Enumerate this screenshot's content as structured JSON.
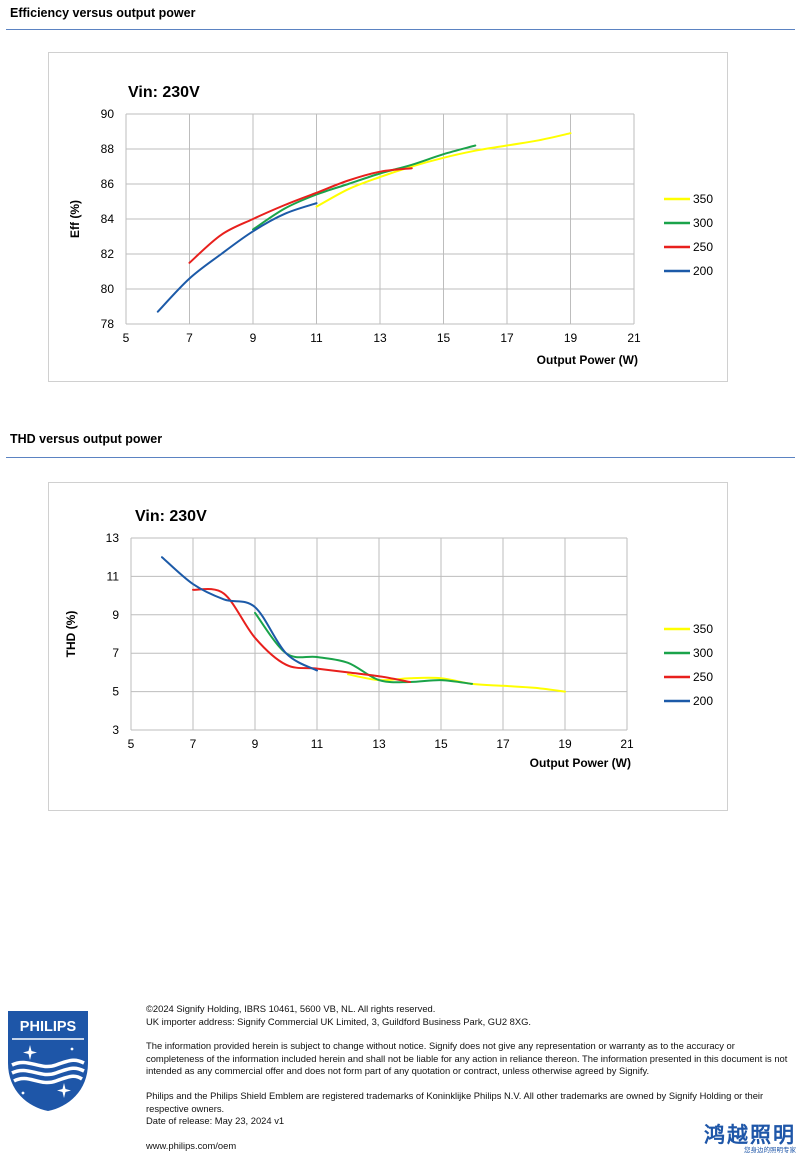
{
  "sections": [
    {
      "title": "Efficiency versus output power"
    },
    {
      "title": "THD versus output power"
    }
  ],
  "chart_data": [
    {
      "type": "line",
      "title": "Vin: 230V",
      "xlabel": "Output Power (W)",
      "ylabel": "Eff  (%)",
      "xlim": [
        5,
        21
      ],
      "ylim": [
        78,
        90
      ],
      "xticks": [
        5,
        7,
        9,
        11,
        13,
        15,
        17,
        19,
        21
      ],
      "yticks": [
        78,
        80,
        82,
        84,
        86,
        88,
        90
      ],
      "grid": true,
      "legend_position": "right",
      "series": [
        {
          "name": "350",
          "color": "#ffff00",
          "x": [
            11,
            12,
            13,
            14,
            15,
            16,
            17,
            18,
            19
          ],
          "y": [
            84.7,
            85.7,
            86.4,
            87.0,
            87.5,
            87.9,
            88.2,
            88.5,
            88.9
          ]
        },
        {
          "name": "300",
          "color": "#1aa34a",
          "x": [
            9,
            10,
            11,
            12,
            13,
            14,
            15,
            16
          ],
          "y": [
            83.4,
            84.6,
            85.4,
            86.0,
            86.6,
            87.1,
            87.7,
            88.2
          ]
        },
        {
          "name": "250",
          "color": "#e8201d",
          "x": [
            7,
            8,
            9,
            10,
            11,
            12,
            13,
            14
          ],
          "y": [
            81.5,
            83.1,
            84.0,
            84.8,
            85.5,
            86.2,
            86.7,
            86.9
          ]
        },
        {
          "name": "200",
          "color": "#1c5aa8",
          "x": [
            6,
            7,
            8,
            9,
            10,
            11
          ],
          "y": [
            78.7,
            80.6,
            82.0,
            83.3,
            84.3,
            84.9
          ]
        }
      ]
    },
    {
      "type": "line",
      "title": "Vin: 230V",
      "xlabel": "Output Power (W)",
      "ylabel": "THD  (%)",
      "xlim": [
        5,
        21
      ],
      "ylim": [
        3,
        13
      ],
      "xticks": [
        5,
        7,
        9,
        11,
        13,
        15,
        17,
        19,
        21
      ],
      "yticks": [
        3,
        5,
        7,
        9,
        11,
        13
      ],
      "grid": true,
      "legend_position": "right",
      "series": [
        {
          "name": "350",
          "color": "#ffff00",
          "x": [
            12,
            13,
            14,
            15,
            16,
            17,
            18,
            19
          ],
          "y": [
            5.9,
            5.6,
            5.7,
            5.7,
            5.4,
            5.3,
            5.2,
            5.0
          ]
        },
        {
          "name": "300",
          "color": "#1aa34a",
          "x": [
            9,
            10,
            11,
            12,
            13,
            14,
            15,
            16
          ],
          "y": [
            9.1,
            7.0,
            6.8,
            6.5,
            5.6,
            5.5,
            5.6,
            5.4
          ]
        },
        {
          "name": "250",
          "color": "#e8201d",
          "x": [
            7,
            8,
            9,
            10,
            11,
            12,
            13,
            14
          ],
          "y": [
            10.3,
            10.1,
            7.8,
            6.4,
            6.2,
            6.0,
            5.8,
            5.5
          ]
        },
        {
          "name": "200",
          "color": "#1c5aa8",
          "x": [
            6,
            7,
            8,
            9,
            10,
            11
          ],
          "y": [
            12.0,
            10.6,
            9.8,
            9.4,
            7.0,
            6.1
          ]
        }
      ]
    }
  ],
  "footer": {
    "brand": "PHILIPS",
    "copyright": "©2024 Signify Holding, IBRS 10461, 5600 VB, NL. All rights reserved.",
    "importer": "UK importer address: Signify Commercial UK Limited, 3, Guildford Business Park, GU2 8XG.",
    "disclaimer": "The information provided herein is subject to change without notice. Signify does not give any representation or warranty as to the accuracy or completeness of the information included herein and shall not be liable for any action in reliance thereon. The information presented in this document is not intended as any commercial offer and does not form part of any quotation or contract, unless otherwise agreed by Signify.",
    "trademarks": "Philips and the Philips Shield Emblem are registered trademarks of Koninklijke Philips N.V. All other trademarks are owned by Signify Holding or their respective owners.",
    "release_date": "Date of release: May 23, 2024 v1",
    "website": "www.philips.com/oem",
    "cn_logo_main": "鸿越照明",
    "cn_logo_sub": "您身边的照明专家",
    "brand_color": "#1e56a8"
  }
}
